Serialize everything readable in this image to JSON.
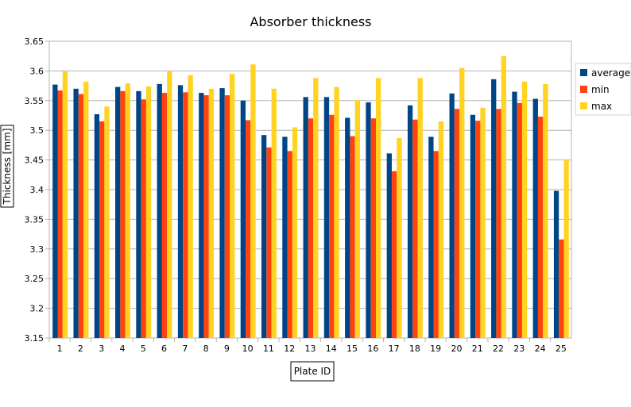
{
  "chart_data": {
    "type": "bar",
    "title": "Absorber thickness",
    "xlabel": "Plate ID",
    "ylabel": "Thickness [mm]",
    "ylim": [
      3.15,
      3.65
    ],
    "yticks": [
      "3.15",
      "3.2",
      "3.25",
      "3.3",
      "3.35",
      "3.4",
      "3.45",
      "3.5",
      "3.55",
      "3.6",
      "3.65"
    ],
    "grid": "horizontal",
    "legend_position": "right",
    "categories": [
      "1",
      "2",
      "3",
      "4",
      "5",
      "6",
      "7",
      "8",
      "9",
      "10",
      "11",
      "12",
      "13",
      "14",
      "15",
      "16",
      "17",
      "18",
      "19",
      "20",
      "21",
      "22",
      "23",
      "24",
      "25"
    ],
    "series": [
      {
        "name": "average",
        "color": "#004586",
        "values": [
          3.577,
          3.57,
          3.527,
          3.573,
          3.566,
          3.578,
          3.576,
          3.563,
          3.571,
          3.55,
          3.492,
          3.489,
          3.556,
          3.556,
          3.521,
          3.547,
          3.461,
          3.542,
          3.489,
          3.562,
          3.526,
          3.586,
          3.565,
          3.553,
          3.398
        ]
      },
      {
        "name": "min",
        "color": "#ff420e",
        "values": [
          3.567,
          3.561,
          3.515,
          3.566,
          3.552,
          3.563,
          3.564,
          3.559,
          3.559,
          3.517,
          3.471,
          3.465,
          3.52,
          3.526,
          3.49,
          3.52,
          3.431,
          3.518,
          3.465,
          3.536,
          3.516,
          3.536,
          3.546,
          3.523,
          3.316
        ]
      },
      {
        "name": "max",
        "color": "#ffd320",
        "values": [
          3.599,
          3.582,
          3.54,
          3.579,
          3.574,
          3.599,
          3.593,
          3.57,
          3.595,
          3.611,
          3.57,
          3.505,
          3.588,
          3.573,
          3.551,
          3.588,
          3.487,
          3.588,
          3.515,
          3.605,
          3.538,
          3.625,
          3.582,
          3.578,
          3.45
        ]
      }
    ]
  }
}
